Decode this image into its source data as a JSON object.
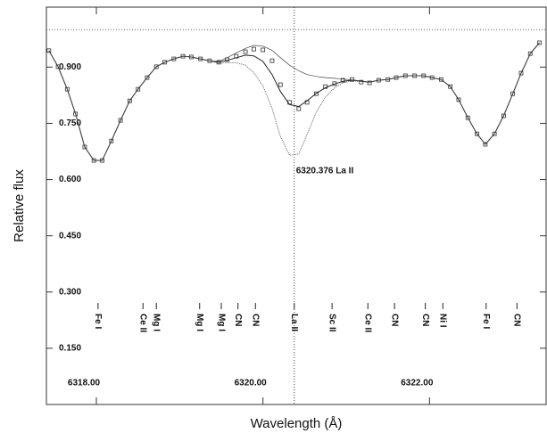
{
  "chart_data": {
    "type": "spectrum",
    "xlabel": "Wavelength (Å)",
    "ylabel": "Relative flux",
    "xlim": [
      6317.4,
      6323.4
    ],
    "ylim": [
      0,
      1.06
    ],
    "xticks": [
      {
        "value": 6318,
        "label": "6318.00"
      },
      {
        "value": 6320,
        "label": "6320.00"
      },
      {
        "value": 6322,
        "label": "6322.00"
      }
    ],
    "yticks": [
      {
        "value": 0.15,
        "label": "0.150"
      },
      {
        "value": 0.3,
        "label": "0.300"
      },
      {
        "value": 0.45,
        "label": "0.450"
      },
      {
        "value": 0.6,
        "label": "0.600"
      },
      {
        "value": 0.75,
        "label": "0.750"
      },
      {
        "value": 0.9,
        "label": "0.900"
      }
    ],
    "continuum": 1.0,
    "marker_line": {
      "wavelength": 6320.376,
      "label": "6320.376  La II"
    },
    "x": [
      6317.43,
      6317.54,
      6317.65,
      6317.75,
      6317.86,
      6317.97,
      6318.07,
      6318.18,
      6318.29,
      6318.4,
      6318.5,
      6318.61,
      6318.72,
      6318.82,
      6318.93,
      6319.04,
      6319.14,
      6319.25,
      6319.36,
      6319.47,
      6319.57,
      6319.68,
      6319.79,
      6319.89,
      6320.0,
      6320.11,
      6320.21,
      6320.32,
      6320.43,
      6320.53,
      6320.64,
      6320.75,
      6320.86,
      6320.96,
      6321.07,
      6321.18,
      6321.28,
      6321.39,
      6321.5,
      6321.6,
      6321.71,
      6321.82,
      6321.93,
      6322.03,
      6322.14,
      6322.25,
      6322.35,
      6322.46,
      6322.57,
      6322.67,
      6322.78,
      6322.89,
      6323.0,
      6323.1,
      6323.21,
      6323.32
    ],
    "series": [
      {
        "style": "square",
        "color": "#333333",
        "values": [
          0.944,
          0.901,
          0.841,
          0.775,
          0.687,
          0.651,
          0.651,
          0.703,
          0.758,
          0.81,
          0.841,
          0.872,
          0.901,
          0.913,
          0.922,
          0.929,
          0.927,
          0.922,
          0.917,
          0.913,
          0.92,
          0.929,
          0.941,
          0.948,
          0.946,
          0.917,
          0.853,
          0.806,
          0.789,
          0.806,
          0.829,
          0.848,
          0.856,
          0.865,
          0.867,
          0.86,
          0.858,
          0.865,
          0.867,
          0.872,
          0.877,
          0.877,
          0.877,
          0.872,
          0.867,
          0.848,
          0.813,
          0.765,
          0.722,
          0.694,
          0.722,
          0.77,
          0.829,
          0.884,
          0.936,
          0.965
        ]
      },
      {
        "style": "solid",
        "color": "#222222",
        "values": [
          0.944,
          0.901,
          0.841,
          0.775,
          0.687,
          0.651,
          0.651,
          0.703,
          0.758,
          0.81,
          0.841,
          0.872,
          0.901,
          0.913,
          0.922,
          0.929,
          0.927,
          0.922,
          0.917,
          0.913,
          0.918,
          0.925,
          0.932,
          0.93,
          0.915,
          0.88,
          0.835,
          0.8,
          0.795,
          0.81,
          0.83,
          0.845,
          0.855,
          0.862,
          0.865,
          0.862,
          0.86,
          0.865,
          0.867,
          0.872,
          0.877,
          0.877,
          0.877,
          0.872,
          0.867,
          0.848,
          0.813,
          0.765,
          0.722,
          0.694,
          0.722,
          0.77,
          0.829,
          0.884,
          0.936,
          0.965
        ]
      },
      {
        "style": "dotted",
        "color": "#444444",
        "values": [
          0.944,
          0.901,
          0.841,
          0.775,
          0.687,
          0.651,
          0.651,
          0.703,
          0.758,
          0.81,
          0.841,
          0.872,
          0.901,
          0.913,
          0.922,
          0.929,
          0.927,
          0.922,
          0.917,
          0.91,
          0.912,
          0.912,
          0.905,
          0.885,
          0.85,
          0.79,
          0.715,
          0.665,
          0.668,
          0.72,
          0.78,
          0.82,
          0.845,
          0.858,
          0.863,
          0.862,
          0.86,
          0.865,
          0.867,
          0.872,
          0.877,
          0.877,
          0.877,
          0.872,
          0.867,
          0.848,
          0.813,
          0.765,
          0.722,
          0.694,
          0.722,
          0.77,
          0.829,
          0.884,
          0.936,
          0.965
        ]
      },
      {
        "style": "thin",
        "color": "#444444",
        "values": [
          0.944,
          0.901,
          0.841,
          0.775,
          0.687,
          0.651,
          0.651,
          0.703,
          0.758,
          0.81,
          0.841,
          0.872,
          0.901,
          0.913,
          0.922,
          0.929,
          0.927,
          0.922,
          0.917,
          0.915,
          0.925,
          0.938,
          0.95,
          0.958,
          0.956,
          0.945,
          0.925,
          0.905,
          0.89,
          0.88,
          0.875,
          0.872,
          0.87,
          0.868,
          0.866,
          0.863,
          0.86,
          0.865,
          0.867,
          0.872,
          0.877,
          0.877,
          0.877,
          0.872,
          0.867,
          0.848,
          0.813,
          0.765,
          0.722,
          0.694,
          0.722,
          0.77,
          0.829,
          0.884,
          0.936,
          0.965
        ]
      }
    ],
    "line_ids": [
      {
        "wavelength": 6318.02,
        "label": "Fe I"
      },
      {
        "wavelength": 6318.56,
        "label": "Ce II"
      },
      {
        "wavelength": 6318.72,
        "label": "Mg I"
      },
      {
        "wavelength": 6319.24,
        "label": "Mg I"
      },
      {
        "wavelength": 6319.5,
        "label": "Mg I"
      },
      {
        "wavelength": 6319.7,
        "label": "CN"
      },
      {
        "wavelength": 6319.91,
        "label": "CN"
      },
      {
        "wavelength": 6320.376,
        "label": "La II"
      },
      {
        "wavelength": 6320.83,
        "label": "Sc II"
      },
      {
        "wavelength": 6321.26,
        "label": "Ce II"
      },
      {
        "wavelength": 6321.58,
        "label": "CN"
      },
      {
        "wavelength": 6321.95,
        "label": "CN"
      },
      {
        "wavelength": 6322.16,
        "label": "Ni I"
      },
      {
        "wavelength": 6322.68,
        "label": "Fe I"
      },
      {
        "wavelength": 6323.05,
        "label": "CN"
      }
    ]
  }
}
